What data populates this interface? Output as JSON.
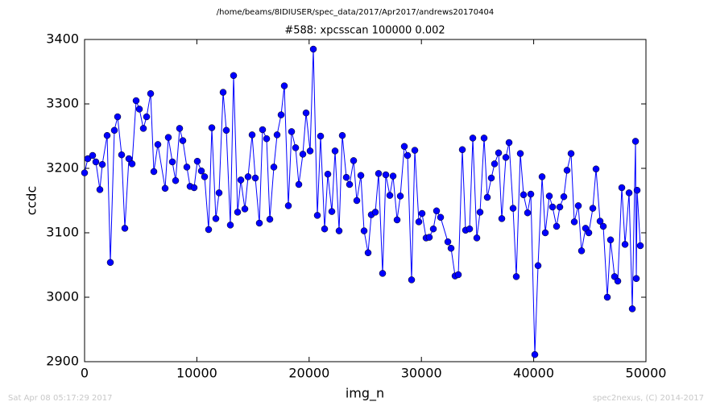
{
  "chart_data": {
    "type": "line",
    "suptitle": "/home/beams/8IDIUSER/spec_data/2017/Apr2017/andrews20170404",
    "title": "#588: xpcsscan 100000 0.002",
    "xlabel": "img_n",
    "ylabel": "ccdc",
    "footer_left": "Sat Apr 08 05:17:29 2017",
    "footer_right": "spec2nexus, (C) 2014-2017",
    "xlim": [
      0,
      50000
    ],
    "xticks": [
      0,
      10000,
      20000,
      30000,
      40000,
      50000
    ],
    "ylim": [
      2900,
      3400
    ],
    "yticks": [
      2900,
      3000,
      3100,
      3200,
      3300,
      3400
    ],
    "color": "#0000ff",
    "marker": true,
    "x": [
      0,
      287,
      717,
      1004,
      1363,
      1578,
      2009,
      2296,
      2654,
      2941,
      3300,
      3587,
      3946,
      4233,
      4591,
      4878,
      5237,
      5524,
      5883,
      6170,
      6528,
      7174,
      7461,
      7820,
      8107,
      8465,
      8752,
      9111,
      9398,
      9756,
      10043,
      10402,
      10689,
      11048,
      11335,
      11693,
      11980,
      12339,
      12626,
      12985,
      13272,
      13631,
      13918,
      14276,
      14563,
      14922,
      15209,
      15567,
      15854,
      16213,
      16500,
      16859,
      17146,
      17504,
      17791,
      18150,
      18437,
      18796,
      19083,
      19441,
      19728,
      20087,
      20374,
      20733,
      21020,
      21378,
      21665,
      22024,
      22311,
      22669,
      22956,
      23315,
      23602,
      23961,
      24248,
      24607,
      24894,
      25252,
      25539,
      25898,
      26185,
      26543,
      26830,
      27189,
      27476,
      27835,
      28122,
      28480,
      28767,
      29126,
      29413,
      29771,
      30058,
      30417,
      30704,
      31063,
      31350,
      31708,
      32355,
      32642,
      33000,
      33287,
      33646,
      33933,
      34292,
      34579,
      34937,
      35224,
      35583,
      35870,
      36228,
      36515,
      36874,
      37161,
      37520,
      37807,
      38165,
      38452,
      38811,
      39098,
      39457,
      39744,
      40102,
      40389,
      40748,
      41035,
      41393,
      41680,
      42039,
      42326,
      42685,
      42972,
      43330,
      43617,
      43976,
      44263,
      44622,
      44909,
      45267,
      45554,
      45913,
      46200,
      46559,
      46846,
      47204,
      47491,
      47850,
      48137,
      48496,
      48783,
      49070,
      49141,
      49213,
      49500
    ],
    "values": [
      3193,
      3215,
      3220,
      3210,
      3167,
      3206,
      3251,
      3054,
      3259,
      3280,
      3221,
      3107,
      3215,
      3207,
      3305,
      3292,
      3262,
      3280,
      3316,
      3195,
      3237,
      3169,
      3248,
      3210,
      3181,
      3262,
      3243,
      3202,
      3172,
      3170,
      3211,
      3196,
      3187,
      3105,
      3263,
      3122,
      3162,
      3318,
      3259,
      3112,
      3344,
      3132,
      3182,
      3137,
      3187,
      3252,
      3185,
      3115,
      3260,
      3246,
      3121,
      3202,
      3252,
      3283,
      3328,
      3142,
      3257,
      3232,
      3175,
      3222,
      3286,
      3227,
      3385,
      3127,
      3250,
      3106,
      3191,
      3133,
      3227,
      3103,
      3251,
      3186,
      3175,
      3212,
      3150,
      3189,
      3103,
      3069,
      3128,
      3132,
      3192,
      3037,
      3190,
      3158,
      3188,
      3120,
      3157,
      3234,
      3220,
      3027,
      3228,
      3117,
      3130,
      3092,
      3093,
      3106,
      3134,
      3124,
      3086,
      3076,
      3033,
      3035,
      3229,
      3104,
      3106,
      3247,
      3092,
      3132,
      3247,
      3155,
      3185,
      3207,
      3224,
      3122,
      3217,
      3240,
      3138,
      3032,
      3223,
      3159,
      3131,
      3160,
      2911,
      3049,
      3187,
      3100,
      3157,
      3140,
      3110,
      3140,
      3156,
      3197,
      3223,
      3117,
      3142,
      3072,
      3107,
      3100,
      3138,
      3199,
      3118,
      3110,
      3000,
      3089,
      3032,
      3025,
      3170,
      3082,
      3162,
      2982,
      3242,
      3029,
      3166,
      3080
    ]
  }
}
